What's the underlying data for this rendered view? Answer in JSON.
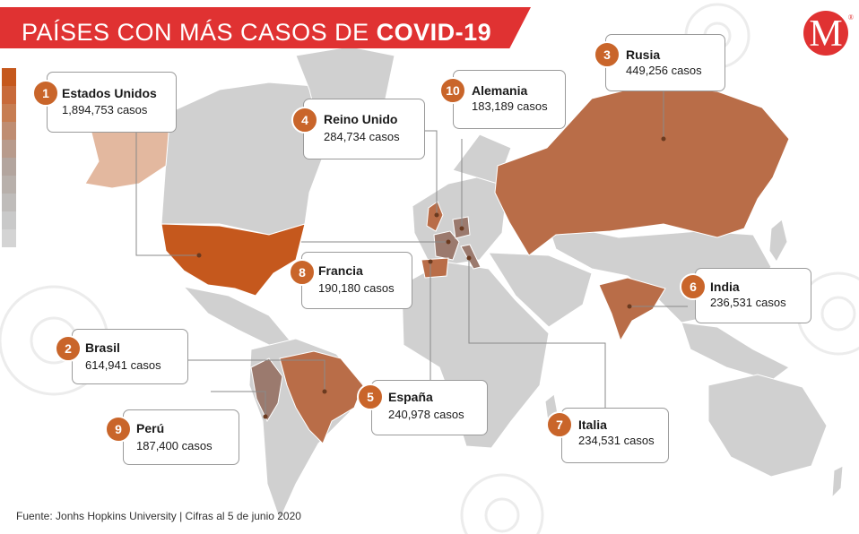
{
  "title": {
    "prefix": "PAÍSES CON MÁS CASOS DE ",
    "highlight": "COVID-19"
  },
  "logo": {
    "letter": "M",
    "mark": "®"
  },
  "colors": {
    "accent": "#e03232",
    "top": "#c5581d",
    "high": "#b96d48",
    "mid": "#9b7a6e",
    "low": "#e3b89f",
    "land": "#d0d0d0"
  },
  "legend": {
    "colors": [
      "#c5581d",
      "#c86a3a",
      "#c77d52",
      "#bf8d72",
      "#b89b8c",
      "#b3a59e",
      "#b8b0ab",
      "#bfbcba",
      "#c9c9c9",
      "#d4d4d4"
    ]
  },
  "countries": [
    {
      "rank": "1",
      "name": "Estados Unidos",
      "cases": "1,894,753 casos"
    },
    {
      "rank": "2",
      "name": "Brasil",
      "cases": "614,941 casos"
    },
    {
      "rank": "3",
      "name": "Rusia",
      "cases": "449,256 casos"
    },
    {
      "rank": "4",
      "name": "Reino Unido",
      "cases": "284,734 casos"
    },
    {
      "rank": "5",
      "name": "España",
      "cases": "240,978 casos"
    },
    {
      "rank": "6",
      "name": "India",
      "cases": "236,531 casos"
    },
    {
      "rank": "7",
      "name": "Italia",
      "cases": "234,531 casos"
    },
    {
      "rank": "8",
      "name": "Francia",
      "cases": "190,180 casos"
    },
    {
      "rank": "9",
      "name": "Perú",
      "cases": "187,400 casos"
    },
    {
      "rank": "10",
      "name": "Alemania",
      "cases": "183,189 casos"
    }
  ],
  "source": "Fuente: Jonhs Hopkins University | Cifras al 5 de junio 2020"
}
